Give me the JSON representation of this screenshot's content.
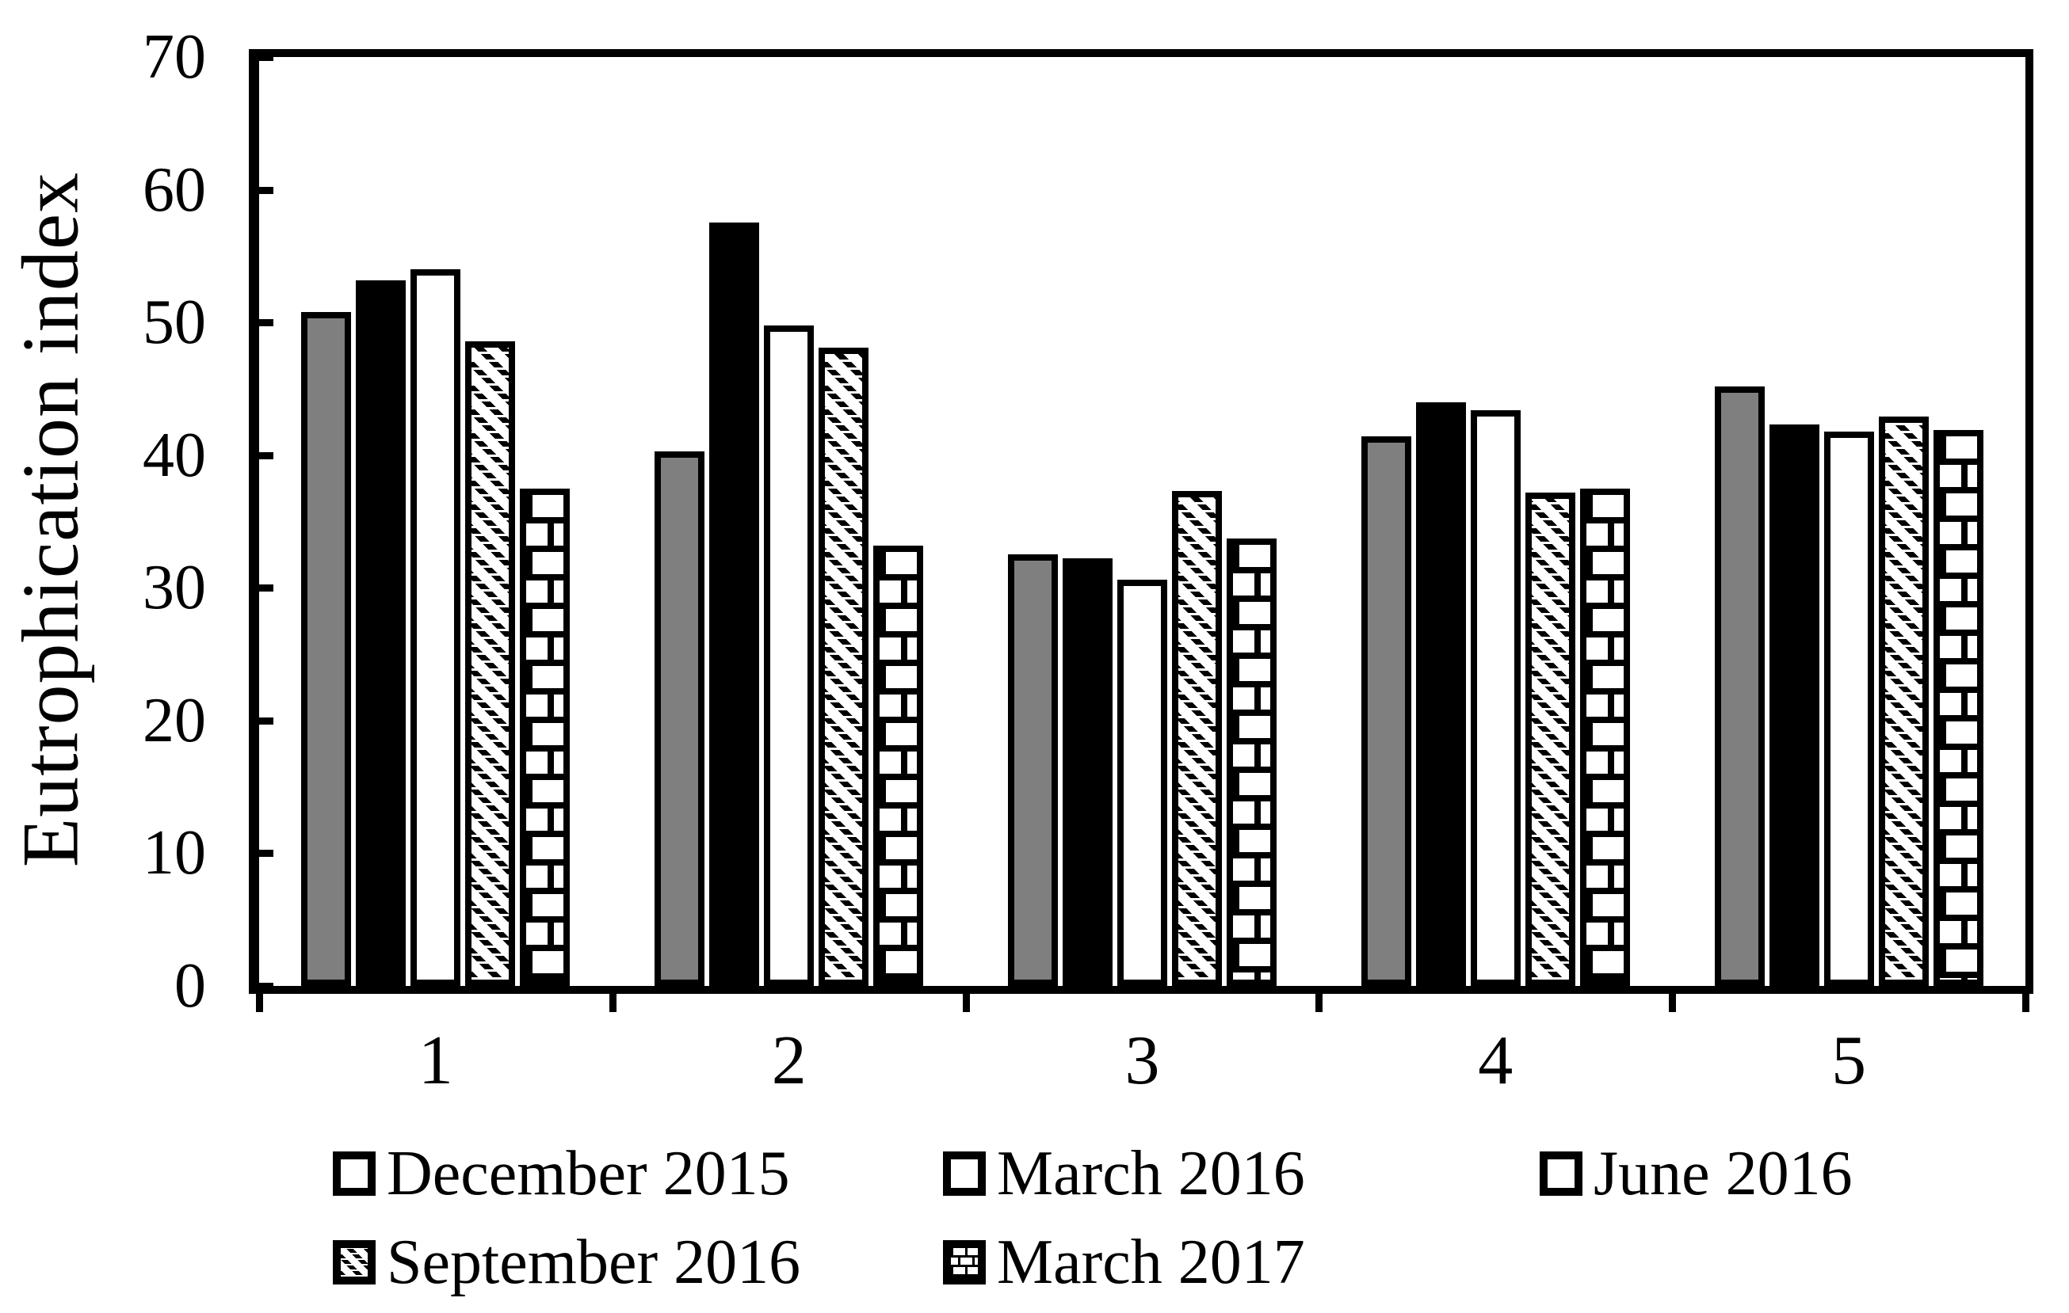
{
  "chart_data": {
    "type": "bar",
    "title": "",
    "xlabel": "",
    "ylabel": "Eutrophication index",
    "ylim": [
      0,
      70
    ],
    "yticks": [
      0,
      10,
      20,
      30,
      40,
      50,
      60,
      70
    ],
    "grid": false,
    "plot_border": true,
    "legend_position": "bottom",
    "categories": [
      "1",
      "2",
      "3",
      "4",
      "5"
    ],
    "series": [
      {
        "name": "December 2015",
        "pattern": "solid-gray",
        "color": "#7f7f7f",
        "values": [
          50.8,
          40.3,
          32.5,
          41.4,
          45.2
        ]
      },
      {
        "name": "March 2016",
        "pattern": "solid-black",
        "color": "#000000",
        "values": [
          53.2,
          57.5,
          32.2,
          44.0,
          42.3
        ]
      },
      {
        "name": "June 2016",
        "pattern": "white-outlined",
        "color": "#ffffff",
        "values": [
          54.0,
          49.8,
          30.6,
          43.4,
          41.8
        ]
      },
      {
        "name": "September 2016",
        "pattern": "diagonal-dash-hatch",
        "color": "#000000",
        "values": [
          48.6,
          48.1,
          37.3,
          37.2,
          42.9
        ]
      },
      {
        "name": "March 2017",
        "pattern": "brick",
        "color": "#000000",
        "values": [
          37.5,
          33.2,
          33.7,
          37.5,
          41.9
        ]
      }
    ]
  }
}
